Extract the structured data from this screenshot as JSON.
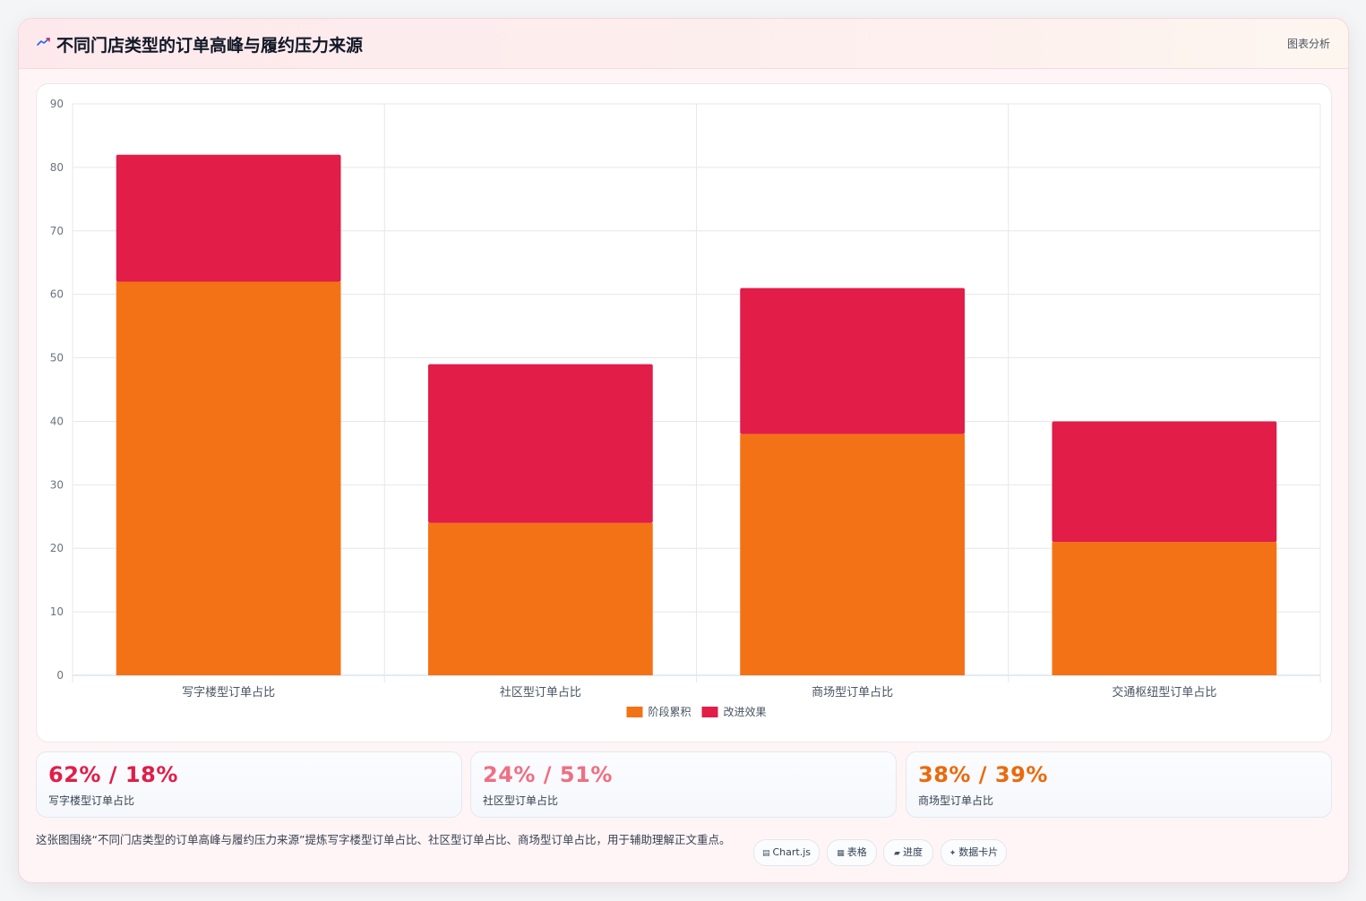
{
  "header": {
    "title": "不同门店类型的订单高峰与履约压力来源",
    "tag": "图表分析",
    "icon": "trend-icon"
  },
  "chart_data": {
    "type": "bar",
    "stacked": true,
    "categories": [
      "写字楼型订单占比",
      "社区型订单占比",
      "商场型订单占比",
      "交通枢纽型订单占比"
    ],
    "series": [
      {
        "name": "阶段累积",
        "values": [
          62,
          24,
          38,
          21
        ],
        "color": "#f47216"
      },
      {
        "name": "改进效果",
        "values": [
          20,
          25,
          23,
          19
        ],
        "color": "#e11d48"
      }
    ],
    "ylim": [
      0,
      90
    ],
    "yticks": [
      0,
      10,
      20,
      30,
      40,
      50,
      60,
      70,
      80,
      90
    ],
    "grid": true,
    "legend_position": "bottom"
  },
  "stats": [
    {
      "value": "62% / 18%",
      "label": "写字楼型订单占比",
      "color": "#e11d48"
    },
    {
      "value": "24% / 51%",
      "label": "社区型订单占比",
      "color": "#ef6f82"
    },
    {
      "value": "38% / 39%",
      "label": "商场型订单占比",
      "color": "#ea6a0c"
    }
  ],
  "footer": {
    "description": "这张图围绕“不同门店类型的订单高峰与履约压力来源”提炼写字楼型订单占比、社区型订单占比、商场型订单占比，用于辅助理解正文重点。",
    "chips": [
      {
        "icon": "▤",
        "label": "Chart.js"
      },
      {
        "icon": "▦",
        "label": "表格"
      },
      {
        "icon": "▰",
        "label": "进度"
      },
      {
        "icon": "✦",
        "label": "数据卡片"
      }
    ]
  }
}
